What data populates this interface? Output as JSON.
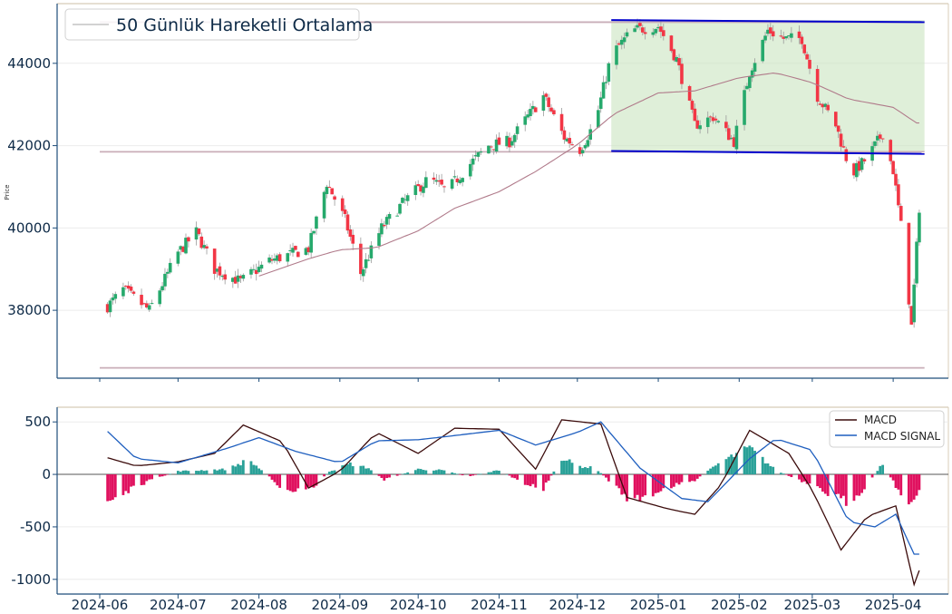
{
  "chart_data": [
    {
      "type": "candlestick",
      "ylabel": "Price",
      "ylim": [
        36350,
        45450
      ],
      "yticks": [
        38000,
        40000,
        42000,
        44000
      ],
      "legend": {
        "entries": [
          "50 Günlük Hareketli Ortalama"
        ],
        "placement": "top-left"
      },
      "series": [
        {
          "name": "50 Günlük Hareketli Ortalama",
          "kind": "moving-average",
          "start_date": "2024-08-01",
          "anchors": [
            [
              "2024-08-01",
              38830
            ],
            [
              "2024-08-20",
              39250
            ],
            [
              "2024-09-01",
              39470
            ],
            [
              "2024-09-15",
              39520
            ],
            [
              "2024-10-01",
              39930
            ],
            [
              "2024-10-15",
              40480
            ],
            [
              "2024-11-01",
              40880
            ],
            [
              "2024-11-15",
              41370
            ],
            [
              "2024-12-01",
              42020
            ],
            [
              "2024-12-15",
              42770
            ],
            [
              "2025-01-01",
              43280
            ],
            [
              "2025-01-15",
              43330
            ],
            [
              "2025-02-01",
              43650
            ],
            [
              "2025-02-15",
              43770
            ],
            [
              "2025-03-01",
              43530
            ],
            [
              "2025-03-15",
              43130
            ],
            [
              "2025-04-01",
              42930
            ],
            [
              "2025-04-10",
              42550
            ]
          ]
        }
      ],
      "close_anchors": [
        [
          "2024-06-01",
          37900
        ],
        [
          "2024-06-10",
          38500
        ],
        [
          "2024-06-20",
          38000
        ],
        [
          "2024-07-01",
          39400
        ],
        [
          "2024-07-08",
          39900
        ],
        [
          "2024-07-15",
          39000
        ],
        [
          "2024-07-25",
          38700
        ],
        [
          "2024-08-05",
          39200
        ],
        [
          "2024-08-20",
          39500
        ],
        [
          "2024-08-27",
          41100
        ],
        [
          "2024-09-03",
          40200
        ],
        [
          "2024-09-09",
          38900
        ],
        [
          "2024-09-17",
          40000
        ],
        [
          "2024-09-25",
          40600
        ],
        [
          "2024-10-05",
          41200
        ],
        [
          "2024-10-12",
          40900
        ],
        [
          "2024-10-20",
          41500
        ],
        [
          "2024-10-28",
          42000
        ],
        [
          "2024-11-05",
          42100
        ],
        [
          "2024-11-12",
          42700
        ],
        [
          "2024-11-18",
          43200
        ],
        [
          "2024-11-26",
          42200
        ],
        [
          "2024-12-02",
          41900
        ],
        [
          "2024-12-08",
          42600
        ],
        [
          "2024-12-14",
          44200
        ],
        [
          "2024-12-22",
          44800
        ],
        [
          "2025-01-01",
          44900
        ],
        [
          "2025-01-08",
          44100
        ],
        [
          "2025-01-15",
          42500
        ],
        [
          "2025-01-22",
          42700
        ],
        [
          "2025-01-30",
          42100
        ],
        [
          "2025-02-05",
          43800
        ],
        [
          "2025-02-12",
          44800
        ],
        [
          "2025-02-18",
          44600
        ],
        [
          "2025-02-25",
          44600
        ],
        [
          "2025-03-03",
          43200
        ],
        [
          "2025-03-10",
          42500
        ],
        [
          "2025-03-16",
          41300
        ],
        [
          "2025-03-22",
          41700
        ],
        [
          "2025-03-28",
          42300
        ],
        [
          "2025-04-01",
          41400
        ],
        [
          "2025-04-05",
          39600
        ],
        [
          "2025-04-08",
          37600
        ],
        [
          "2025-04-11",
          40500
        ]
      ],
      "annotations": [
        {
          "kind": "hline",
          "y": 45000,
          "x_start": "2024-06-01",
          "x_end": "2025-04-13"
        },
        {
          "kind": "hline",
          "y": 41850,
          "x_start": "2024-06-01",
          "x_end": "2025-04-13"
        },
        {
          "kind": "hline",
          "y": 36600,
          "x_start": "2024-06-01",
          "x_end": "2025-04-13"
        },
        {
          "kind": "trendline",
          "from": [
            "2024-12-14",
            45050
          ],
          "to": [
            "2025-04-13",
            45000
          ]
        },
        {
          "kind": "trendline",
          "from": [
            "2024-12-14",
            41870
          ],
          "to": [
            "2025-04-13",
            41800
          ]
        },
        {
          "kind": "shaded-region",
          "x_start": "2024-12-14",
          "x_end": "2025-04-13",
          "y_low": 41850,
          "y_high": 45050
        }
      ]
    },
    {
      "type": "line",
      "ylim": [
        -1140,
        640
      ],
      "yticks": [
        500,
        0,
        -500,
        -1000
      ],
      "legend": {
        "entries": [
          "MACD",
          "MACD SIGNAL"
        ],
        "placement": "top-right"
      },
      "series": [
        {
          "name": "MACD",
          "anchors": [
            [
              "2024-06-01",
              180
            ],
            [
              "2024-06-15",
              80
            ],
            [
              "2024-07-01",
              120
            ],
            [
              "2024-07-15",
              200
            ],
            [
              "2024-07-26",
              470
            ],
            [
              "2024-08-10",
              310
            ],
            [
              "2024-08-20",
              -130
            ],
            [
              "2024-09-01",
              30
            ],
            [
              "2024-09-15",
              400
            ],
            [
              "2024-10-01",
              200
            ],
            [
              "2024-10-15",
              440
            ],
            [
              "2024-11-01",
              430
            ],
            [
              "2024-11-15",
              50
            ],
            [
              "2024-11-25",
              520
            ],
            [
              "2024-12-10",
              480
            ],
            [
              "2024-12-20",
              -220
            ],
            [
              "2025-01-05",
              -330
            ],
            [
              "2025-01-15",
              -380
            ],
            [
              "2025-01-25",
              -100
            ],
            [
              "2025-02-05",
              420
            ],
            [
              "2025-02-20",
              200
            ],
            [
              "2025-03-01",
              -150
            ],
            [
              "2025-03-12",
              -720
            ],
            [
              "2025-03-22",
              -400
            ],
            [
              "2025-04-02",
              -300
            ],
            [
              "2025-04-09",
              -1050
            ],
            [
              "2025-04-13",
              -780
            ]
          ]
        },
        {
          "name": "MACD SIGNAL",
          "anchors": [
            [
              "2024-06-01",
              480
            ],
            [
              "2024-06-15",
              150
            ],
            [
              "2024-07-01",
              110
            ],
            [
              "2024-07-20",
              250
            ],
            [
              "2024-08-01",
              350
            ],
            [
              "2024-08-15",
              220
            ],
            [
              "2024-09-01",
              110
            ],
            [
              "2024-09-15",
              320
            ],
            [
              "2024-10-01",
              330
            ],
            [
              "2024-10-15",
              370
            ],
            [
              "2024-11-01",
              420
            ],
            [
              "2024-11-15",
              280
            ],
            [
              "2024-12-01",
              400
            ],
            [
              "2024-12-10",
              500
            ],
            [
              "2024-12-25",
              60
            ],
            [
              "2025-01-10",
              -230
            ],
            [
              "2025-01-20",
              -260
            ],
            [
              "2025-02-05",
              150
            ],
            [
              "2025-02-15",
              340
            ],
            [
              "2025-03-01",
              230
            ],
            [
              "2025-03-15",
              -450
            ],
            [
              "2025-03-25",
              -500
            ],
            [
              "2025-04-02",
              -380
            ],
            [
              "2025-04-09",
              -760
            ],
            [
              "2025-04-13",
              -760
            ]
          ]
        }
      ],
      "histogram_anchors": [
        [
          "2024-06-01",
          -290
        ],
        [
          "2024-06-20",
          -60
        ],
        [
          "2024-07-01",
          30
        ],
        [
          "2024-07-20",
          50
        ],
        [
          "2024-07-28",
          140
        ],
        [
          "2024-08-05",
          -20
        ],
        [
          "2024-08-12",
          -180
        ],
        [
          "2024-08-22",
          -120
        ],
        [
          "2024-08-28",
          30
        ],
        [
          "2024-09-05",
          100
        ],
        [
          "2024-09-12",
          60
        ],
        [
          "2024-09-18",
          -50
        ],
        [
          "2024-10-01",
          50
        ],
        [
          "2024-10-10",
          40
        ],
        [
          "2024-10-20",
          -20
        ],
        [
          "2024-11-01",
          40
        ],
        [
          "2024-11-10",
          -80
        ],
        [
          "2024-11-18",
          -140
        ],
        [
          "2024-11-25",
          160
        ],
        [
          "2024-12-01",
          80
        ],
        [
          "2024-12-08",
          60
        ],
        [
          "2024-12-14",
          -80
        ],
        [
          "2024-12-22",
          -260
        ],
        [
          "2025-01-05",
          -120
        ],
        [
          "2025-01-15",
          -60
        ],
        [
          "2025-01-25",
          120
        ],
        [
          "2025-02-05",
          250
        ],
        [
          "2025-02-15",
          40
        ],
        [
          "2025-02-25",
          -70
        ],
        [
          "2025-03-05",
          -160
        ],
        [
          "2025-03-15",
          -270
        ],
        [
          "2025-03-22",
          -100
        ],
        [
          "2025-03-28",
          100
        ],
        [
          "2025-04-03",
          -150
        ],
        [
          "2025-04-07",
          -350
        ],
        [
          "2025-04-13",
          -20
        ]
      ],
      "x_ticks": [
        "2024-06",
        "2024-07",
        "2024-08",
        "2024-09",
        "2024-10",
        "2024-11",
        "2024-12",
        "2025-01",
        "2025-02",
        "2025-03",
        "2025-04"
      ]
    }
  ],
  "colors": {
    "up": "#26a96c",
    "down": "#f23645",
    "hist_pos": "#2aa198",
    "hist_neg": "#e0115f",
    "macd": "#3b0b0b",
    "signal": "#1f5fbf",
    "ma": "#b07a8a",
    "hlines": "#c9aeb8",
    "trend": "#0000cc",
    "region": "#c9e4c0",
    "axis": "#1e4d7a"
  }
}
